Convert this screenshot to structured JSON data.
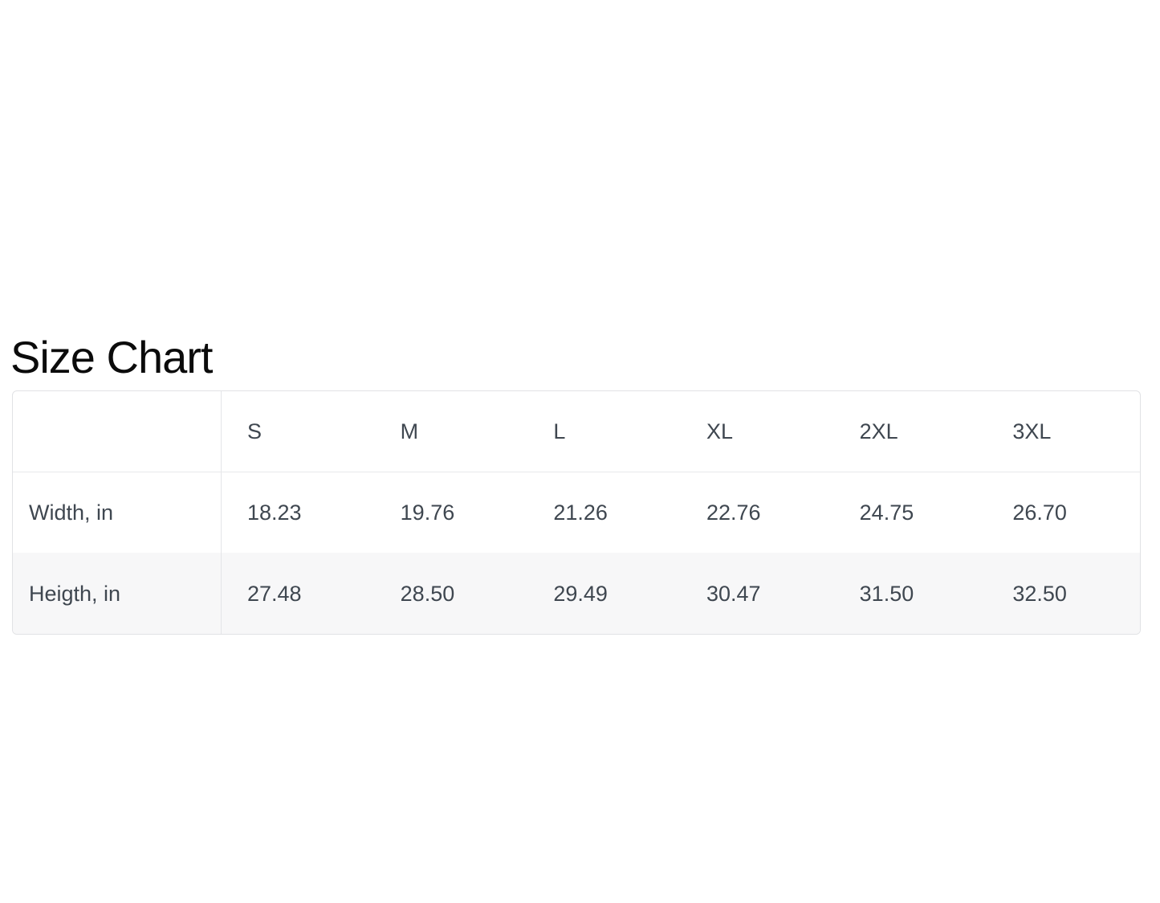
{
  "page": {
    "title": "Size Chart",
    "background_color": "#ffffff"
  },
  "colors": {
    "title_text": "#0b0b0b",
    "table_text": "#3f4750",
    "table_border": "#e1e2e5",
    "header_divider": "#e8e9eb",
    "alt_row_background": "#f7f7f8"
  },
  "size_table": {
    "corner_label": "",
    "column_headers": [
      "S",
      "M",
      "L",
      "XL",
      "2XL",
      "3XL"
    ],
    "rows": [
      {
        "label": "Width, in",
        "values": [
          "18.23",
          "19.76",
          "21.26",
          "22.76",
          "24.75",
          "26.70"
        ]
      },
      {
        "label": "Heigth, in",
        "values": [
          "27.48",
          "28.50",
          "29.49",
          "30.47",
          "31.50",
          "32.50"
        ]
      }
    ]
  },
  "chart_data": {
    "type": "table",
    "title": "Size Chart",
    "columns": [
      "",
      "S",
      "M",
      "L",
      "XL",
      "2XL",
      "3XL"
    ],
    "rows": [
      [
        "Width, in",
        18.23,
        19.76,
        21.26,
        22.76,
        24.75,
        26.7
      ],
      [
        "Heigth, in",
        27.48,
        28.5,
        29.49,
        30.47,
        31.5,
        32.5
      ]
    ],
    "units": "inches",
    "row_labels_column": true
  }
}
